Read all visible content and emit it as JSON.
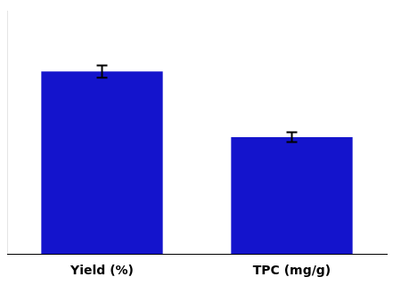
{
  "chart_data": {
    "type": "bar",
    "categories": [
      "Yield (%)",
      "TPC (mg/g)"
    ],
    "values": [
      75,
      48
    ],
    "errors": [
      2.5,
      2.0
    ],
    "color": "#1414CC",
    "ylim": [
      0,
      100
    ],
    "grid": false,
    "tick_labels": "x"
  }
}
